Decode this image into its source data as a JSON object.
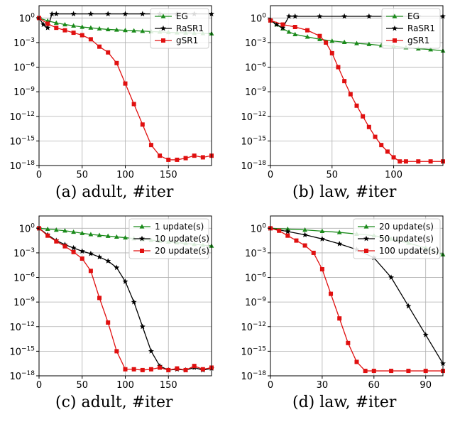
{
  "chart_data": [
    {
      "type": "line",
      "caption": "(a) adult, #iter",
      "y_scale": "log",
      "xlim": [
        0,
        200
      ],
      "ylim_exp": [
        -18,
        1.5
      ],
      "xticks": [
        0,
        50,
        100,
        150
      ],
      "yticks": [
        {
          "exp": 0,
          "base": "10",
          "sup": "0"
        },
        {
          "exp": -3,
          "base": "10",
          "sup": "−3"
        },
        {
          "exp": -6,
          "base": "10",
          "sup": "−6"
        },
        {
          "exp": -9,
          "base": "10",
          "sup": "−9"
        },
        {
          "exp": -12,
          "base": "10",
          "sup": "−12"
        },
        {
          "exp": -15,
          "base": "10",
          "sup": "−15"
        },
        {
          "exp": -18,
          "base": "10",
          "sup": "−18"
        }
      ],
      "grid": true,
      "legend_position": "top-right",
      "series": [
        {
          "name": "EG",
          "color": "#1a8a1a",
          "marker": "triangle",
          "x": [
            0,
            10,
            20,
            30,
            40,
            50,
            60,
            70,
            80,
            90,
            100,
            110,
            120,
            130,
            140,
            150,
            160,
            170,
            180,
            190,
            200
          ],
          "y_exp": [
            0,
            -0.35,
            -0.6,
            -0.8,
            -0.95,
            -1.1,
            -1.2,
            -1.3,
            -1.4,
            -1.45,
            -1.5,
            -1.55,
            -1.6,
            -1.65,
            -1.7,
            -1.75,
            -1.8,
            -1.82,
            -1.85,
            -1.88,
            -1.9
          ]
        },
        {
          "name": "RaSR1",
          "color": "#000000",
          "marker": "star",
          "x": [
            0,
            5,
            10,
            15,
            20,
            40,
            60,
            80,
            100,
            120,
            140,
            160,
            180,
            200
          ],
          "y_exp": [
            0,
            -0.8,
            -1.2,
            0.5,
            0.5,
            0.5,
            0.5,
            0.5,
            0.5,
            0.5,
            0.5,
            0.5,
            0.5,
            0.5
          ]
        },
        {
          "name": "gSR1",
          "color": "#e01010",
          "marker": "square",
          "x": [
            0,
            10,
            20,
            30,
            40,
            50,
            60,
            70,
            80,
            90,
            100,
            110,
            120,
            130,
            140,
            150,
            160,
            170,
            180,
            190,
            200
          ],
          "y_exp": [
            0,
            -0.7,
            -1.2,
            -1.5,
            -1.8,
            -2.1,
            -2.6,
            -3.5,
            -4.2,
            -5.5,
            -8,
            -10.5,
            -13,
            -15.5,
            -16.8,
            -17.3,
            -17.3,
            -17.1,
            -16.8,
            -17.0,
            -16.8
          ]
        }
      ]
    },
    {
      "type": "line",
      "caption": "(b) law, #iter",
      "y_scale": "log",
      "xlim": [
        0,
        140
      ],
      "ylim_exp": [
        -18,
        1.5
      ],
      "xticks": [
        0,
        50,
        100
      ],
      "yticks": [
        {
          "exp": 0,
          "base": "10",
          "sup": "0"
        },
        {
          "exp": -3,
          "base": "10",
          "sup": "−3"
        },
        {
          "exp": -6,
          "base": "10",
          "sup": "−6"
        },
        {
          "exp": -9,
          "base": "10",
          "sup": "−9"
        },
        {
          "exp": -12,
          "base": "10",
          "sup": "−12"
        },
        {
          "exp": -15,
          "base": "10",
          "sup": "−15"
        },
        {
          "exp": -18,
          "base": "10",
          "sup": "−18"
        }
      ],
      "grid": true,
      "legend_position": "top-right",
      "series": [
        {
          "name": "EG",
          "color": "#1a8a1a",
          "marker": "triangle",
          "x": [
            0,
            5,
            10,
            15,
            20,
            30,
            40,
            50,
            60,
            70,
            80,
            90,
            100,
            110,
            120,
            130,
            140
          ],
          "y_exp": [
            -0.2,
            -0.8,
            -1.3,
            -1.7,
            -2.0,
            -2.3,
            -2.6,
            -2.8,
            -2.95,
            -3.1,
            -3.2,
            -3.35,
            -3.45,
            -3.6,
            -3.75,
            -3.85,
            -4.0
          ]
        },
        {
          "name": "RaSR1",
          "color": "#000000",
          "marker": "star",
          "x": [
            0,
            5,
            10,
            15,
            20,
            40,
            60,
            80,
            100,
            120,
            140
          ],
          "y_exp": [
            -0.3,
            -0.8,
            -1.2,
            0.2,
            0.2,
            0.2,
            0.2,
            0.2,
            0.2,
            0.2,
            0.2
          ]
        },
        {
          "name": "gSR1",
          "color": "#e01010",
          "marker": "square",
          "x": [
            0,
            10,
            20,
            30,
            40,
            45,
            50,
            55,
            60,
            65,
            70,
            75,
            80,
            85,
            90,
            95,
            100,
            105,
            110,
            120,
            130,
            140
          ],
          "y_exp": [
            -0.3,
            -0.8,
            -1.1,
            -1.5,
            -2.2,
            -3.0,
            -4.3,
            -6.0,
            -7.7,
            -9.3,
            -10.7,
            -12.0,
            -13.3,
            -14.5,
            -15.5,
            -16.3,
            -17.0,
            -17.5,
            -17.5,
            -17.5,
            -17.5,
            -17.5
          ]
        }
      ]
    },
    {
      "type": "line",
      "caption": "(c) adult, #iter",
      "y_scale": "log",
      "xlim": [
        0,
        200
      ],
      "ylim_exp": [
        -18,
        1.5
      ],
      "xticks": [
        0,
        50,
        100,
        150
      ],
      "yticks": [
        {
          "exp": 0,
          "base": "10",
          "sup": "0"
        },
        {
          "exp": -3,
          "base": "10",
          "sup": "−3"
        },
        {
          "exp": -6,
          "base": "10",
          "sup": "−6"
        },
        {
          "exp": -9,
          "base": "10",
          "sup": "−9"
        },
        {
          "exp": -12,
          "base": "10",
          "sup": "−12"
        },
        {
          "exp": -15,
          "base": "10",
          "sup": "−15"
        },
        {
          "exp": -18,
          "base": "10",
          "sup": "−18"
        }
      ],
      "grid": true,
      "legend_position": "top-right",
      "series": [
        {
          "name": "1 update(s)",
          "color": "#1a8a1a",
          "marker": "triangle",
          "x": [
            0,
            10,
            20,
            30,
            40,
            50,
            60,
            70,
            80,
            90,
            100,
            110,
            120,
            130,
            140,
            150,
            160,
            170,
            180,
            190,
            200
          ],
          "y_exp": [
            0,
            -0.1,
            -0.2,
            -0.3,
            -0.45,
            -0.6,
            -0.75,
            -0.85,
            -0.95,
            -1.05,
            -1.15,
            -1.25,
            -1.35,
            -1.45,
            -1.55,
            -1.65,
            -1.75,
            -1.85,
            -1.95,
            -2.05,
            -2.15
          ]
        },
        {
          "name": "10 update(s)",
          "color": "#000000",
          "marker": "star",
          "x": [
            0,
            10,
            20,
            30,
            40,
            50,
            60,
            70,
            80,
            90,
            100,
            110,
            120,
            130,
            140,
            150,
            160,
            170,
            180,
            190,
            200
          ],
          "y_exp": [
            0,
            -0.8,
            -1.5,
            -2.0,
            -2.4,
            -2.8,
            -3.1,
            -3.5,
            -4.0,
            -4.8,
            -6.5,
            -9.0,
            -12.0,
            -15.0,
            -16.8,
            -17.3,
            -17.2,
            -17.3,
            -17.0,
            -17.3,
            -17.1
          ]
        },
        {
          "name": "20 update(s)",
          "color": "#e01010",
          "marker": "square",
          "x": [
            0,
            10,
            20,
            30,
            40,
            50,
            60,
            70,
            80,
            90,
            100,
            110,
            120,
            130,
            140,
            150,
            160,
            170,
            180,
            190,
            200
          ],
          "y_exp": [
            0,
            -0.9,
            -1.6,
            -2.2,
            -2.9,
            -3.7,
            -5.2,
            -8.5,
            -11.5,
            -15.0,
            -17.2,
            -17.2,
            -17.3,
            -17.2,
            -17.0,
            -17.3,
            -17.1,
            -17.3,
            -16.8,
            -17.2,
            -17.0
          ]
        }
      ]
    },
    {
      "type": "line",
      "caption": "(d) law, #iter",
      "y_scale": "log",
      "xlim": [
        0,
        100
      ],
      "ylim_exp": [
        -18,
        1.5
      ],
      "xticks": [
        0,
        30,
        60,
        90
      ],
      "yticks": [
        {
          "exp": 0,
          "base": "10",
          "sup": "0"
        },
        {
          "exp": -3,
          "base": "10",
          "sup": "−3"
        },
        {
          "exp": -6,
          "base": "10",
          "sup": "−6"
        },
        {
          "exp": -9,
          "base": "10",
          "sup": "−9"
        },
        {
          "exp": -12,
          "base": "10",
          "sup": "−12"
        },
        {
          "exp": -15,
          "base": "10",
          "sup": "−15"
        },
        {
          "exp": -18,
          "base": "10",
          "sup": "−18"
        }
      ],
      "grid": true,
      "legend_position": "top-right",
      "series": [
        {
          "name": "20 update(s)",
          "color": "#1a8a1a",
          "marker": "triangle",
          "x": [
            0,
            10,
            20,
            30,
            40,
            50,
            60,
            70,
            80,
            90,
            100
          ],
          "y_exp": [
            0,
            -0.1,
            -0.2,
            -0.35,
            -0.5,
            -0.7,
            -0.9,
            -1.3,
            -1.8,
            -2.4,
            -3.2
          ]
        },
        {
          "name": "50 update(s)",
          "color": "#000000",
          "marker": "star",
          "x": [
            0,
            10,
            20,
            30,
            40,
            50,
            60,
            70,
            80,
            90,
            100
          ],
          "y_exp": [
            0,
            -0.4,
            -0.8,
            -1.3,
            -1.9,
            -2.6,
            -3.6,
            -6.0,
            -9.5,
            -13.0,
            -16.5
          ]
        },
        {
          "name": "100 update(s)",
          "color": "#e01010",
          "marker": "square",
          "x": [
            0,
            5,
            10,
            15,
            20,
            25,
            30,
            35,
            40,
            45,
            50,
            55,
            60,
            70,
            80,
            90,
            100
          ],
          "y_exp": [
            0,
            -0.3,
            -0.9,
            -1.5,
            -2.1,
            -3.0,
            -5.0,
            -8.0,
            -11.0,
            -14.0,
            -16.3,
            -17.4,
            -17.4,
            -17.4,
            -17.4,
            -17.4,
            -17.4
          ]
        }
      ]
    }
  ]
}
